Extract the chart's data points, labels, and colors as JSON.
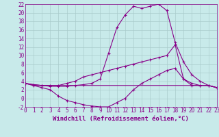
{
  "xlabel": "Windchill (Refroidissement éolien,°C)",
  "bg_color": "#c8eaea",
  "line_color": "#880088",
  "grid_color": "#aacccc",
  "x_values": [
    0,
    1,
    2,
    3,
    4,
    5,
    6,
    7,
    8,
    9,
    10,
    11,
    12,
    13,
    14,
    15,
    16,
    17,
    18,
    19,
    20,
    21,
    22,
    23
  ],
  "line1": [
    3.5,
    3.2,
    3.0,
    2.8,
    2.8,
    2.8,
    3.0,
    3.2,
    3.5,
    4.5,
    10.5,
    16.5,
    19.5,
    21.5,
    21.0,
    21.5,
    22.0,
    20.5,
    13.0,
    8.5,
    5.5,
    4.0,
    3.0,
    2.5
  ],
  "line2": [
    3.5,
    3.2,
    3.0,
    3.0,
    3.0,
    3.5,
    4.0,
    5.0,
    5.5,
    6.0,
    6.5,
    7.0,
    7.5,
    8.0,
    8.5,
    9.0,
    9.5,
    10.0,
    12.5,
    4.5,
    3.5,
    3.0,
    3.0,
    2.5
  ],
  "line3": [
    3.5,
    3.0,
    2.5,
    2.0,
    0.5,
    -0.5,
    -1.0,
    -1.5,
    -1.8,
    -2.0,
    -2.0,
    -1.0,
    0.0,
    2.0,
    3.5,
    4.5,
    5.5,
    6.5,
    7.0,
    4.5,
    3.0,
    3.0,
    3.0,
    2.5
  ],
  "line4": [
    3.5,
    3.0,
    3.0,
    3.0,
    3.0,
    3.0,
    3.0,
    3.0,
    3.0,
    3.0,
    3.0,
    3.0,
    3.0,
    3.0,
    3.0,
    3.0,
    3.0,
    3.0,
    3.0,
    3.0,
    3.0,
    3.0,
    3.0,
    2.5
  ],
  "ylim": [
    -2,
    22
  ],
  "xlim": [
    0,
    23
  ],
  "yticks": [
    -2,
    0,
    2,
    4,
    6,
    8,
    10,
    12,
    14,
    16,
    18,
    20,
    22
  ],
  "xticks": [
    0,
    1,
    2,
    3,
    4,
    5,
    6,
    7,
    8,
    9,
    10,
    11,
    12,
    13,
    14,
    15,
    16,
    17,
    18,
    19,
    20,
    21,
    22,
    23
  ],
  "xtick_labels": [
    "0",
    "1",
    "2",
    "3",
    "4",
    "5",
    "6",
    "7",
    "8",
    "9",
    "10",
    "11",
    "12",
    "13",
    "14",
    "15",
    "16",
    "17",
    "18",
    "19",
    "20",
    "21",
    "22",
    "23"
  ],
  "ytick_labels": [
    "-2",
    "0",
    "2",
    "4",
    "6",
    "8",
    "10",
    "12",
    "14",
    "16",
    "18",
    "20",
    "22"
  ],
  "marker": "+",
  "markersize": 3,
  "linewidth": 0.8,
  "tick_fontsize": 5.5,
  "label_fontsize": 6.5
}
